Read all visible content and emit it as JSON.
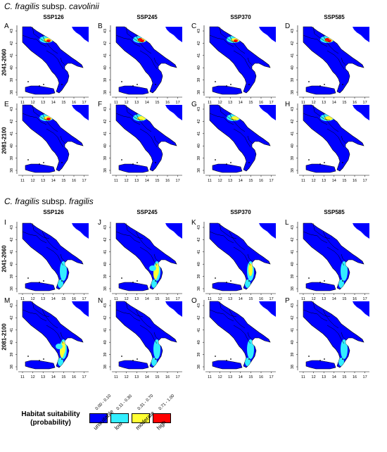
{
  "sections": [
    {
      "title_genus": "C. fragilis",
      "title_mid": " subsp. ",
      "title_subsp": "cavolinii",
      "columns": [
        "SSP126",
        "SSP245",
        "SSP370",
        "SSP585"
      ],
      "rows": [
        {
          "label": "2041-2060",
          "letters": [
            "A",
            "B",
            "C",
            "D"
          ]
        },
        {
          "label": "2081-2100",
          "letters": [
            "E",
            "F",
            "G",
            "H"
          ]
        }
      ]
    },
    {
      "title_genus": "C. fragilis",
      "title_mid": " subsp. ",
      "title_subsp": "fragilis",
      "columns": [
        "SSP126",
        "SSP245",
        "SSP370",
        "SSP585"
      ],
      "rows": [
        {
          "label": "2041-2060",
          "letters": [
            "I",
            "J",
            "K",
            "L"
          ]
        },
        {
          "label": "2081-2100",
          "letters": [
            "M",
            "N",
            "O",
            "P"
          ]
        }
      ]
    }
  ],
  "axes": {
    "lon_ticks": [
      "11",
      "12",
      "13",
      "14",
      "15",
      "16",
      "17"
    ],
    "lat_ticks": [
      "43",
      "42",
      "41",
      "40",
      "39",
      "38"
    ]
  },
  "legend": {
    "title_line1": "Habitat suitability",
    "title_line2": "(probability)",
    "classes": [
      {
        "range": "0.00 - 0.10",
        "label": "unsuitable",
        "color": "#0000ff"
      },
      {
        "range": "0.11 - 0.30",
        "label": "low",
        "color": "#33eeff"
      },
      {
        "range": "0.31 - 0.70",
        "label": "moderate",
        "color": "#ffff33"
      },
      {
        "range": "0.71 - 1.00",
        "label": "high",
        "color": "#ff0000"
      }
    ]
  },
  "colors": {
    "unsuitable": "#0000ff",
    "low": "#33eeff",
    "moderate": "#ffff33",
    "high": "#ff0000",
    "outline": "#000000"
  }
}
